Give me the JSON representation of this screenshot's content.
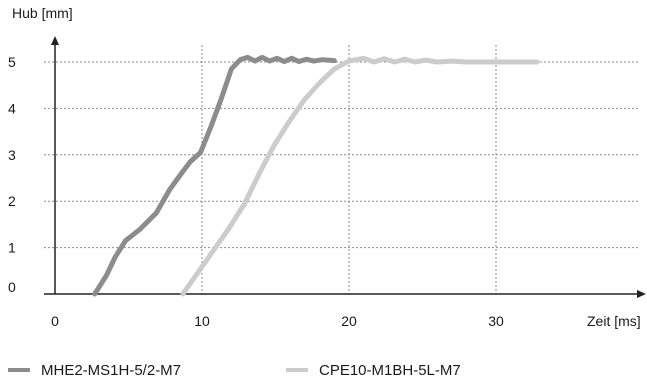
{
  "chart_data": {
    "type": "line",
    "title": "",
    "xlabel": "Zeit [ms]",
    "ylabel": "Hub [mm]",
    "xlim": [
      -2,
      39
    ],
    "ylim": [
      0,
      5.5
    ],
    "x_ticks": [
      0,
      10,
      20,
      30
    ],
    "y_ticks": [
      0,
      1,
      2,
      3,
      4,
      5
    ],
    "grid": true,
    "legend_position": "bottom",
    "series": [
      {
        "name": "MHE2-MS1H-5/2-M7",
        "color": "#8c8c8c",
        "points": [
          [
            2.7,
            0
          ],
          [
            3.5,
            0.4
          ],
          [
            4.1,
            0.8
          ],
          [
            4.8,
            1.15
          ],
          [
            5.8,
            1.4
          ],
          [
            6.9,
            1.75
          ],
          [
            7.8,
            2.25
          ],
          [
            8.6,
            2.6
          ],
          [
            9.2,
            2.85
          ],
          [
            9.9,
            3.05
          ],
          [
            10.6,
            3.6
          ],
          [
            11.3,
            4.2
          ],
          [
            12.0,
            4.85
          ],
          [
            12.6,
            5.05
          ],
          [
            13.1,
            5.1
          ],
          [
            13.6,
            5.02
          ],
          [
            14.1,
            5.1
          ],
          [
            14.6,
            5.02
          ],
          [
            15.1,
            5.08
          ],
          [
            15.6,
            5.01
          ],
          [
            16.1,
            5.08
          ],
          [
            16.6,
            5.01
          ],
          [
            17.1,
            5.06
          ],
          [
            17.6,
            5.02
          ],
          [
            18.2,
            5.05
          ],
          [
            19.0,
            5.03
          ]
        ]
      },
      {
        "name": "CPE10-M1BH-5L-M7",
        "color": "#cccccc",
        "points": [
          [
            8.7,
            0
          ],
          [
            9.7,
            0.45
          ],
          [
            10.8,
            0.95
          ],
          [
            11.8,
            1.4
          ],
          [
            12.9,
            1.95
          ],
          [
            13.9,
            2.6
          ],
          [
            14.9,
            3.2
          ],
          [
            16.0,
            3.75
          ],
          [
            17.0,
            4.2
          ],
          [
            18.0,
            4.55
          ],
          [
            19.0,
            4.85
          ],
          [
            20.0,
            5.02
          ],
          [
            21.0,
            5.08
          ],
          [
            21.7,
            5.0
          ],
          [
            22.4,
            5.07
          ],
          [
            23.1,
            5.0
          ],
          [
            23.8,
            5.06
          ],
          [
            24.5,
            5.0
          ],
          [
            25.2,
            5.04
          ],
          [
            26.0,
            5.0
          ],
          [
            27.0,
            5.02
          ],
          [
            28.0,
            5.0
          ],
          [
            29.5,
            5.0
          ],
          [
            31.0,
            5.0
          ],
          [
            32.8,
            5.0
          ]
        ]
      }
    ]
  }
}
